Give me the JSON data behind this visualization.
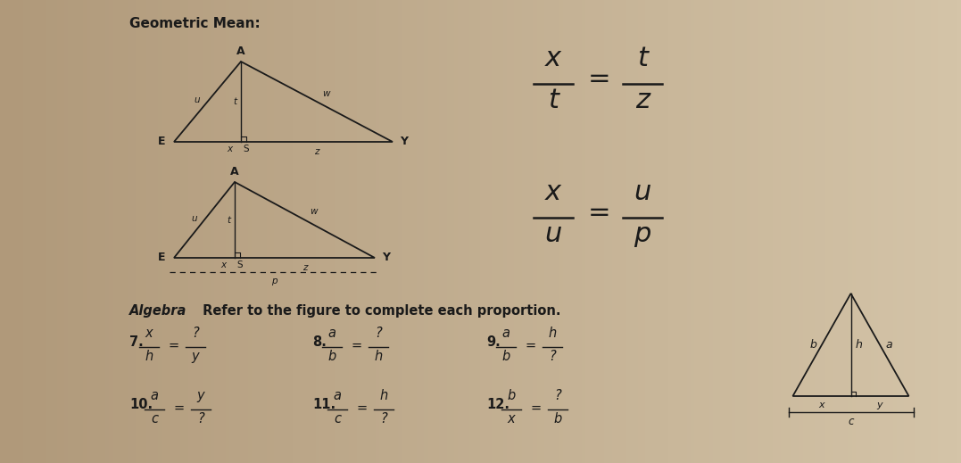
{
  "bg_color": "#c9b99a",
  "bg_left_color": "#a89070",
  "title": "Geometric Mean:",
  "text_color": "#1a1a1a",
  "line_color": "#1a1a1a",
  "eq1": {
    "num1": "x",
    "den1": "t",
    "num2": "t",
    "den2": "z"
  },
  "eq2": {
    "num1": "x",
    "den1": "u",
    "num2": "u",
    "den2": "p"
  },
  "algebra_text": "Algebra",
  "algebra_rest": " Refer to the figure to complete each proportion.",
  "problems": [
    {
      "num": "7.",
      "n1": "x",
      "d1": "h",
      "n2": "?",
      "d2": "y"
    },
    {
      "num": "8.",
      "n1": "a",
      "d1": "b",
      "n2": "?",
      "d2": "h"
    },
    {
      "num": "9.",
      "n1": "a",
      "d1": "b",
      "n2": "h",
      "d2": "?"
    },
    {
      "num": "10.",
      "n1": "a",
      "d1": "c",
      "n2": "y",
      "d2": "?"
    },
    {
      "num": "11.",
      "n1": "a",
      "d1": "c",
      "n2": "h",
      "d2": "?"
    },
    {
      "num": "12.",
      "n1": "b",
      "d1": "x",
      "n2": "?",
      "d2": "b"
    }
  ]
}
